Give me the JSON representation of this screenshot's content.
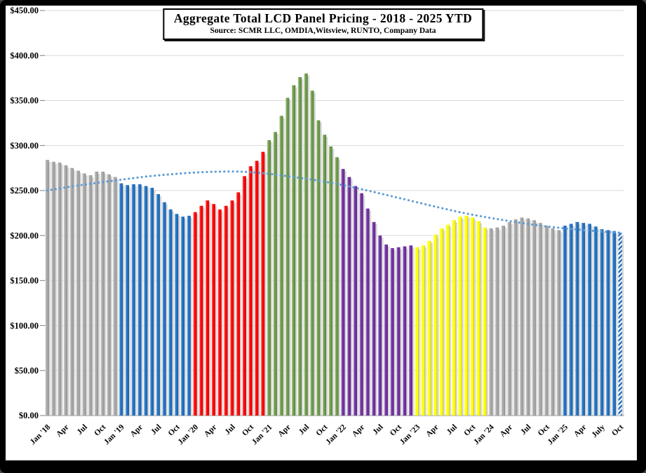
{
  "header": {
    "title": "Aggregate Total LCD Panel Pricing - 2018 - 2025 YTD",
    "subtitle": "Source: SCMR LLC, OMDIA,Witsview, RUNTO, Company Data"
  },
  "chart_data": {
    "type": "bar",
    "title": "Aggregate Total LCD Panel Pricing - 2018 - 2025 YTD",
    "subtitle": "Source: SCMR LLC, OMDIA,Witsview, RUNTO, Company Data",
    "unit": "USD",
    "ylim": [
      0,
      450
    ],
    "ytick_step": 50,
    "ytick_labels": [
      "$0.00",
      "$50.00",
      "$100.00",
      "$150.00",
      "$200.00",
      "$250.00",
      "$300.00",
      "$350.00",
      "$400.00",
      "$450.00"
    ],
    "xtick_every_n_months": 3,
    "xtick_labels": [
      "Jan '18",
      "Apr",
      "Jul",
      "Oct",
      "Jan '19",
      "Apr",
      "Jul",
      "Oct",
      "Jan '20",
      "Apr",
      "Jul",
      "Oct",
      "Jan '21",
      "Apr",
      "Jul",
      "Oct",
      "Jan '22",
      "Apr",
      "Jul",
      "Oct",
      "Jan '23",
      "Apr",
      "Jul",
      "Oct",
      "Jan '24",
      "Apr",
      "Jul",
      "Oct",
      "Jan '25",
      "Apr",
      "July",
      "Oct"
    ],
    "grid": {
      "show": true,
      "color": "#D9D9D9"
    },
    "legend_position": "none",
    "series": [
      {
        "year": 2018,
        "color": "#A6A6A6",
        "values": [
          284,
          282,
          281,
          278,
          275,
          272,
          269,
          267,
          271,
          271,
          268,
          265
        ]
      },
      {
        "year": 2019,
        "color": "#1F70C1",
        "values": [
          258,
          256,
          257,
          257,
          255,
          253,
          246,
          237,
          229,
          224,
          221,
          222
        ]
      },
      {
        "year": 2020,
        "color": "#FE0000",
        "values": [
          226,
          233,
          239,
          235,
          229,
          233,
          239,
          248,
          266,
          277,
          283,
          293
        ]
      },
      {
        "year": 2021,
        "color": "#6C9A47",
        "values": [
          306,
          315,
          333,
          353,
          367,
          376,
          380,
          361,
          328,
          312,
          299,
          287
        ]
      },
      {
        "year": 2022,
        "color": "#7030A0",
        "values": [
          274,
          265,
          255,
          247,
          230,
          215,
          200,
          190,
          186,
          187,
          188,
          189
        ]
      },
      {
        "year": 2023,
        "color": "#FFFF00",
        "values": [
          187,
          189,
          194,
          201,
          208,
          212,
          217,
          221,
          222,
          220,
          216,
          209
        ]
      },
      {
        "year": 2024,
        "color": "#A6A6A6",
        "values": [
          208,
          209,
          211,
          215,
          218,
          220,
          219,
          217,
          214,
          211,
          208,
          206
        ]
      },
      {
        "year": 2025,
        "color": "#1F70C1",
        "last_bar_hatched": true,
        "values": [
          211,
          213,
          215,
          214,
          213,
          210,
          207,
          206,
          205,
          203
        ]
      }
    ],
    "trendline": {
      "type": "polynomial-fit",
      "style": "dotted",
      "color": "#5B9BD5",
      "points": [
        [
          0,
          250
        ],
        [
          4,
          254.5
        ],
        [
          8,
          258.5
        ],
        [
          12,
          262
        ],
        [
          16,
          265.5
        ],
        [
          20,
          268
        ],
        [
          24,
          270
        ],
        [
          28,
          271
        ],
        [
          32,
          270.8
        ],
        [
          36,
          268.5
        ],
        [
          40,
          265
        ],
        [
          44,
          261
        ],
        [
          48,
          256
        ],
        [
          52,
          250
        ],
        [
          56,
          243.5
        ],
        [
          60,
          237
        ],
        [
          64,
          230.5
        ],
        [
          68,
          224.5
        ],
        [
          72,
          219.5
        ],
        [
          76,
          215
        ],
        [
          80,
          211
        ],
        [
          84,
          208
        ],
        [
          88,
          205.5
        ],
        [
          91,
          204
        ],
        [
          93,
          203.2
        ]
      ]
    }
  },
  "colors": {
    "frame": "#000000",
    "background": "#FFFFFF",
    "bar_shadow": "#D9D9D9",
    "axis_line": "#808080",
    "gridline": "#D9D9D9"
  }
}
